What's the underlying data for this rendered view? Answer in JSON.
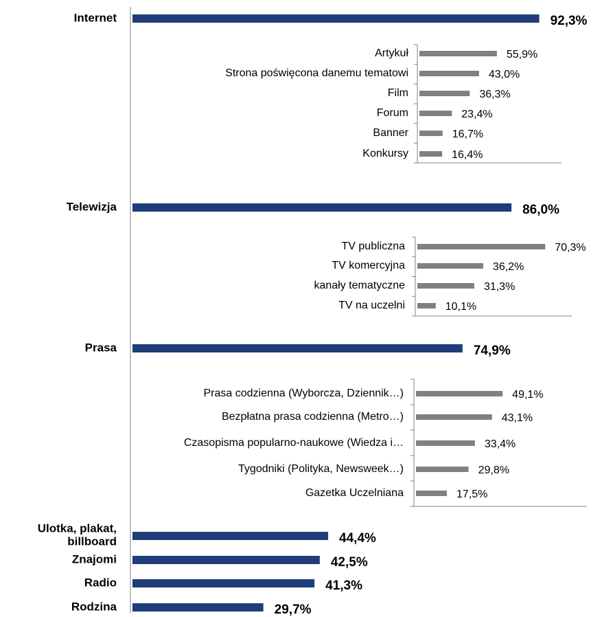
{
  "chart_data": [
    {
      "type": "bar",
      "orientation": "horizontal",
      "color": "#1f3d7a",
      "categories": [
        "Internet",
        "Telewizja",
        "Prasa",
        "Ulotka, plakat,\nbillboard",
        "Znajomi",
        "Radio",
        "Rodzina"
      ],
      "values": [
        92.3,
        86.0,
        74.9,
        44.4,
        42.5,
        41.3,
        29.7
      ],
      "value_labels": [
        "92,3%",
        "86,0%",
        "74,9%",
        "44,4%",
        "42,5%",
        "41,3%",
        "29,7%"
      ]
    },
    {
      "type": "bar",
      "orientation": "horizontal",
      "color": "#808080",
      "categories": [
        "Artykuł",
        "Strona  poświęcona danemu tematowi",
        "Film",
        "Forum",
        "Banner",
        "Konkursy"
      ],
      "values": [
        55.9,
        43.0,
        36.3,
        23.4,
        16.7,
        16.4
      ],
      "value_labels": [
        "55,9%",
        "43,0%",
        "36,3%",
        "23,4%",
        "16,7%",
        "16,4%"
      ]
    },
    {
      "type": "bar",
      "orientation": "horizontal",
      "color": "#808080",
      "categories": [
        "TV publiczna",
        "TV komercyjna",
        "kanały tematyczne",
        "TV na uczelni"
      ],
      "values": [
        70.3,
        36.2,
        31.3,
        10.1
      ],
      "value_labels": [
        "70,3%",
        "36,2%",
        "31,3%",
        "10,1%"
      ]
    },
    {
      "type": "bar",
      "orientation": "horizontal",
      "color": "#808080",
      "categories": [
        "Prasa codzienna (Wyborcza, Dziennik…)",
        "Bezpłatna prasa codzienna (Metro…)",
        "Czasopisma popularno-naukowe (Wiedza i…",
        "Tygodniki (Polityka, Newsweek…)",
        "Gazetka Uczelniana"
      ],
      "values": [
        49.1,
        43.1,
        33.4,
        29.8,
        17.5
      ],
      "value_labels": [
        "49,1%",
        "43,1%",
        "33,4%",
        "29,8%",
        "17,5%"
      ]
    }
  ]
}
